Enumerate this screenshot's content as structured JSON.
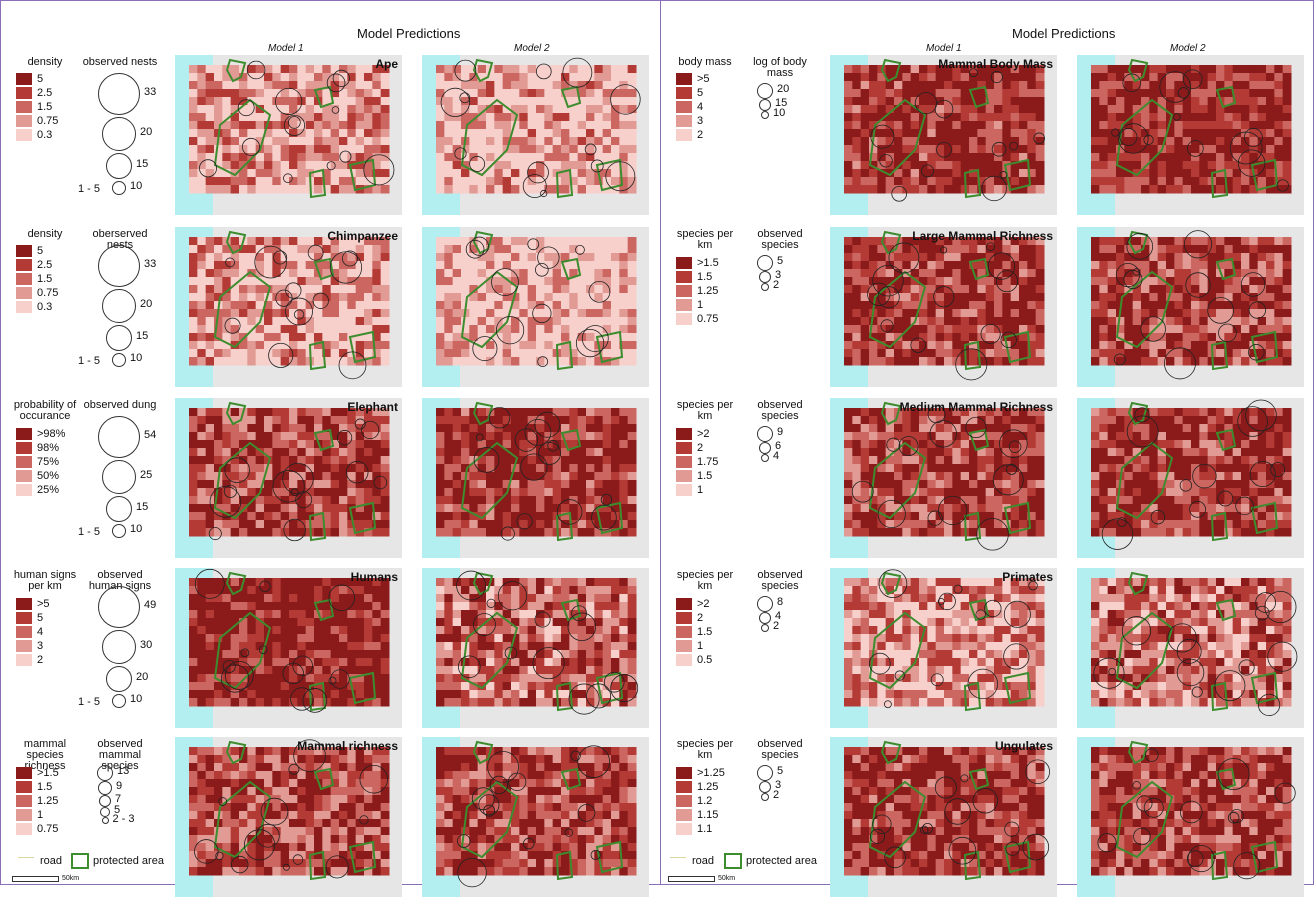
{
  "headers": {
    "left": "Model Predictions",
    "right": "Model Predictions"
  },
  "models": {
    "m1": "Model 1",
    "m2": "Model 2"
  },
  "colors": {
    "ramp": [
      "#8b1a1a",
      "#b33a35",
      "#cc6660",
      "#e29a94",
      "#f7d0cc"
    ],
    "ocean": "#b3eef0",
    "land_grey": "#e6e6e6",
    "protected": "#3d8c2e"
  },
  "left_rows": [
    {
      "title": "Ape",
      "legend_title": "density",
      "legend": [
        "5",
        "2.5",
        "1.5",
        "0.75",
        "0.3"
      ],
      "circle_title": "observed nests",
      "circles": [
        "33",
        "20",
        "15",
        "10"
      ],
      "min_label": "1 - 5"
    },
    {
      "title": "Chimpanzee",
      "legend_title": "density",
      "legend": [
        "5",
        "2.5",
        "1.5",
        "0.75",
        "0.3"
      ],
      "circle_title": "oberserved nests",
      "circles": [
        "33",
        "20",
        "15",
        "10"
      ],
      "min_label": "1 - 5"
    },
    {
      "title": "Elephant",
      "legend_title": "probability of occurance",
      "legend": [
        ">98%",
        "98%",
        "75%",
        "50%",
        "25%"
      ],
      "circle_title": "observed dung",
      "circles": [
        "54",
        "25",
        "15",
        "10"
      ],
      "min_label": "1 - 5"
    },
    {
      "title": "Humans",
      "legend_title": "human signs per km",
      "legend": [
        ">5",
        "5",
        "4",
        "3",
        "2"
      ],
      "circle_title": "observed human signs",
      "circles": [
        "49",
        "30",
        "20",
        "10"
      ],
      "min_label": "1 - 5"
    },
    {
      "title": "Mammal richness",
      "legend_title": "mammal species richness",
      "legend": [
        ">1.5",
        "1.5",
        "1.25",
        "1",
        "0.75"
      ],
      "circle_title": "observed mammal species",
      "circles": [
        "13",
        "9",
        "7",
        "5",
        "2 - 3"
      ],
      "min_label": ""
    }
  ],
  "right_rows": [
    {
      "title": "Mammal Body Mass",
      "legend_title": "body mass",
      "legend": [
        ">5",
        "5",
        "4",
        "3",
        "2"
      ],
      "circle_title": "log of body mass",
      "circles": [
        "20",
        "15",
        "10"
      ]
    },
    {
      "title": "Large Mammal Richness",
      "legend_title": "species per km",
      "legend": [
        ">1.5",
        "1.5",
        "1.25",
        "1",
        "0.75"
      ],
      "circle_title": "observed species",
      "circles": [
        "5",
        "3",
        "2"
      ]
    },
    {
      "title": "Medium Mammal Richness",
      "legend_title": "species per km",
      "legend": [
        ">2",
        "2",
        "1.75",
        "1.5",
        "1"
      ],
      "circle_title": "observed species",
      "circles": [
        "9",
        "6",
        "4"
      ]
    },
    {
      "title": "Primates",
      "legend_title": "species per km",
      "legend": [
        ">2",
        "2",
        "1.5",
        "1",
        "0.5"
      ],
      "circle_title": "observed species",
      "circles": [
        "8",
        "4",
        "2"
      ]
    },
    {
      "title": "Ungulates",
      "legend_title": "species per km",
      "legend": [
        ">1.25",
        "1.25",
        "1.2",
        "1.15",
        "1.1"
      ],
      "circle_title": "observed species",
      "circles": [
        "5",
        "3",
        "2"
      ]
    }
  ],
  "bottom": {
    "road": "road",
    "protected": "protected area",
    "scale": "50km"
  },
  "intensity": {
    "left": [
      [
        0.35,
        0.2
      ],
      [
        0.3,
        0.15
      ],
      [
        0.7,
        0.8
      ],
      [
        0.9,
        0.55
      ],
      [
        0.65,
        0.7
      ]
    ],
    "right": [
      [
        0.8,
        0.85
      ],
      [
        0.75,
        0.7
      ],
      [
        0.7,
        0.75
      ],
      [
        0.35,
        0.5
      ],
      [
        0.75,
        0.7
      ]
    ]
  }
}
